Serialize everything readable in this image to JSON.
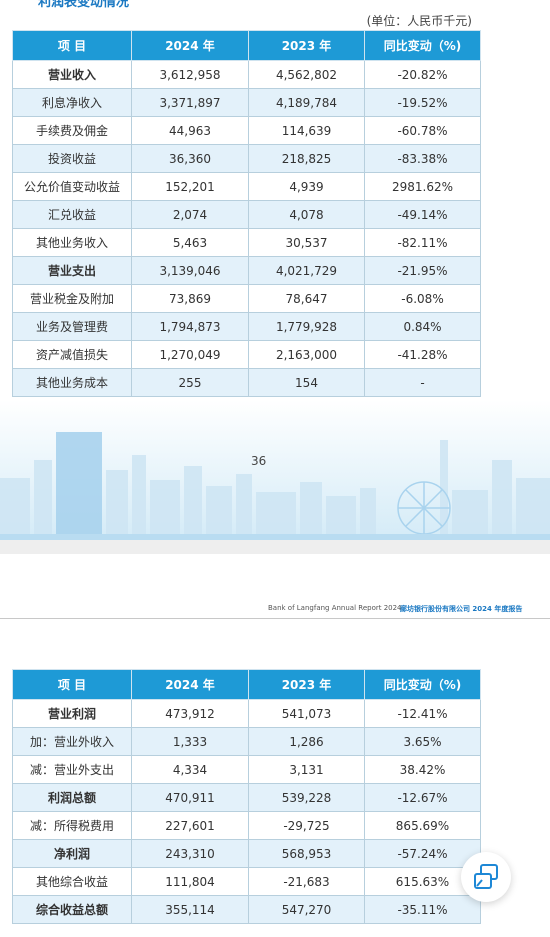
{
  "page1": {
    "cut_title": "利润表变动情况",
    "unit": "(单位：人民币千元)",
    "page_number": "36"
  },
  "header2": {
    "english": "Bank of Langfang Annual Report 2024",
    "chinese": "廊坊银行股份有限公司 2024 年度报告"
  },
  "table_headers": [
    "项 目",
    "2024 年",
    "2023 年",
    "同比变动（%)"
  ],
  "table1": [
    {
      "item": "营业收入",
      "y2024": "3,612,958",
      "y2023": "4,562,802",
      "change": "-20.82%",
      "bold": true
    },
    {
      "item": "利息净收入",
      "y2024": "3,371,897",
      "y2023": "4,189,784",
      "change": "-19.52%",
      "bold": false
    },
    {
      "item": "手续费及佣金",
      "y2024": "44,963",
      "y2023": "114,639",
      "change": "-60.78%",
      "bold": false
    },
    {
      "item": "投资收益",
      "y2024": "36,360",
      "y2023": "218,825",
      "change": "-83.38%",
      "bold": false
    },
    {
      "item": "公允价值变动收益",
      "y2024": "152,201",
      "y2023": "4,939",
      "change": "2981.62%",
      "bold": false
    },
    {
      "item": "汇兑收益",
      "y2024": "2,074",
      "y2023": "4,078",
      "change": "-49.14%",
      "bold": false
    },
    {
      "item": "其他业务收入",
      "y2024": "5,463",
      "y2023": "30,537",
      "change": "-82.11%",
      "bold": false
    },
    {
      "item": "营业支出",
      "y2024": "3,139,046",
      "y2023": "4,021,729",
      "change": "-21.95%",
      "bold": true
    },
    {
      "item": "营业税金及附加",
      "y2024": "73,869",
      "y2023": "78,647",
      "change": "-6.08%",
      "bold": false
    },
    {
      "item": "业务及管理费",
      "y2024": "1,794,873",
      "y2023": "1,779,928",
      "change": "0.84%",
      "bold": false
    },
    {
      "item": "资产减值损失",
      "y2024": "1,270,049",
      "y2023": "2,163,000",
      "change": "-41.28%",
      "bold": false
    },
    {
      "item": "其他业务成本",
      "y2024": "255",
      "y2023": "154",
      "change": "-",
      "bold": false
    }
  ],
  "table2": [
    {
      "item": "营业利润",
      "y2024": "473,912",
      "y2023": "541,073",
      "change": "-12.41%",
      "bold": true
    },
    {
      "item": "加：营业外收入",
      "y2024": "1,333",
      "y2023": "1,286",
      "change": "3.65%",
      "bold": false
    },
    {
      "item": "减：营业外支出",
      "y2024": "4,334",
      "y2023": "3,131",
      "change": "38.42%",
      "bold": false
    },
    {
      "item": "利润总额",
      "y2024": "470,911",
      "y2023": "539,228",
      "change": "-12.67%",
      "bold": true
    },
    {
      "item": "减：所得税费用",
      "y2024": "227,601",
      "y2023": "-29,725",
      "change": "865.69%",
      "bold": false
    },
    {
      "item": "净利润",
      "y2024": "243,310",
      "y2023": "568,953",
      "change": "-57.24%",
      "bold": true
    },
    {
      "item": "其他综合收益",
      "y2024": "111,804",
      "y2023": "-21,683",
      "change": "615.63%",
      "bold": false
    },
    {
      "item": "综合收益总额",
      "y2024": "355,114",
      "y2023": "547,270",
      "change": "-35.11%",
      "bold": true
    }
  ],
  "float_button": {
    "icon": "window-restore-icon"
  }
}
